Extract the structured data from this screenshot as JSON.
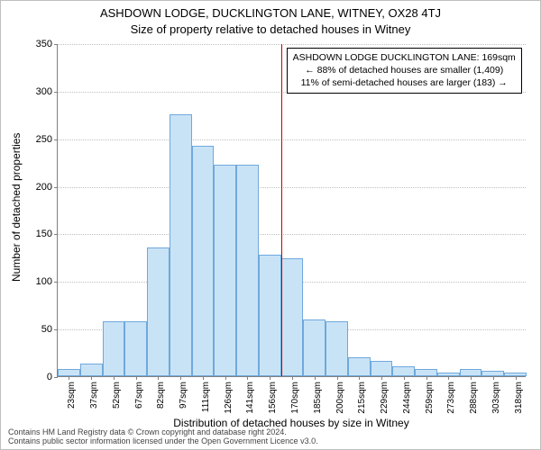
{
  "chart": {
    "type": "histogram",
    "title_main": "ASHDOWN LODGE, DUCKLINGTON LANE, WITNEY, OX28 4TJ",
    "title_sub": "Size of property relative to detached houses in Witney",
    "title_fontsize": 13,
    "ylabel": "Number of detached properties",
    "xlabel": "Distribution of detached houses by size in Witney",
    "label_fontsize": 12,
    "background_color": "#ffffff",
    "grid_color": "#c0c0c0",
    "axis_color": "#808080",
    "ylim": [
      0,
      350
    ],
    "ytick_step": 50,
    "yticks": [
      0,
      50,
      100,
      150,
      200,
      250,
      300,
      350
    ],
    "xtick_labels": [
      "23sqm",
      "37sqm",
      "52sqm",
      "67sqm",
      "82sqm",
      "97sqm",
      "111sqm",
      "126sqm",
      "141sqm",
      "156sqm",
      "170sqm",
      "185sqm",
      "200sqm",
      "215sqm",
      "229sqm",
      "244sqm",
      "259sqm",
      "273sqm",
      "288sqm",
      "303sqm",
      "318sqm"
    ],
    "tick_fontsize": 11,
    "bar_fill": "#c9e3f6",
    "bar_border": "#6fa8dc",
    "bar_width_ratio": 1.0,
    "values": [
      8,
      13,
      58,
      58,
      135,
      275,
      242,
      222,
      222,
      128,
      124,
      60,
      58,
      20,
      16,
      10,
      8,
      4,
      8,
      6,
      4
    ],
    "refline": {
      "x_index": 10,
      "color": "#cc0000",
      "value_sqm": 169
    },
    "annotation": {
      "line1": "ASHDOWN LODGE DUCKLINGTON LANE: 169sqm",
      "line2": "← 88% of detached houses are smaller (1,409)",
      "line3": "11% of semi-detached houses are larger (183) →",
      "fontsize": 10.5
    },
    "footer_line1": "Contains HM Land Registry data © Crown copyright and database right 2024.",
    "footer_line2": "Contains public sector information licensed under the Open Government Licence v3.0."
  }
}
